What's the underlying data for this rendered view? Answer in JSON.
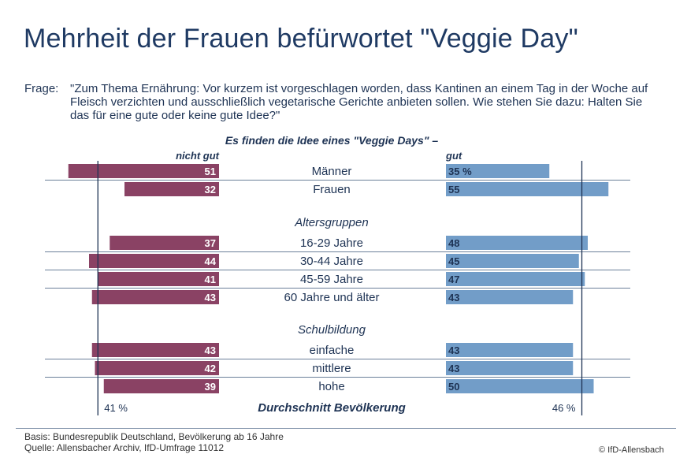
{
  "title": "Mehrheit der Frauen befürwortet \"Veggie Day\"",
  "question_label": "Frage:",
  "question": "\"Zum Thema Ernährung: Vor kurzem ist vorgeschlagen worden, dass Kantinen an einem Tag in der Woche auf Fleisch verzichten und ausschließlich vegetarische Gerichte anbieten sollen. Wie stehen Sie dazu: Halten Sie das für eine gute oder keine gute Idee?\"",
  "chart_data": {
    "type": "bar",
    "subtitle": "Es finden die Idee eines \"Veggie Days\" –",
    "left_label": "nicht gut",
    "right_label": "gut",
    "colors": {
      "nicht_gut": "#8a4264",
      "gut": "#729dc8"
    },
    "groups": [
      {
        "heading": "",
        "rows": [
          {
            "category": "Männer",
            "nicht_gut": 51,
            "gut": 35,
            "gut_label": "35 %"
          },
          {
            "category": "Frauen",
            "nicht_gut": 32,
            "gut": 55,
            "gut_label": "55"
          }
        ]
      },
      {
        "heading": "Altersgruppen",
        "rows": [
          {
            "category": "16-29 Jahre",
            "nicht_gut": 37,
            "gut": 48,
            "gut_label": "48"
          },
          {
            "category": "30-44 Jahre",
            "nicht_gut": 44,
            "gut": 45,
            "gut_label": "45"
          },
          {
            "category": "45-59 Jahre",
            "nicht_gut": 41,
            "gut": 47,
            "gut_label": "47"
          },
          {
            "category": "60 Jahre und älter",
            "nicht_gut": 43,
            "gut": 43,
            "gut_label": "43"
          }
        ]
      },
      {
        "heading": "Schulbildung",
        "rows": [
          {
            "category": "einfache",
            "nicht_gut": 43,
            "gut": 43,
            "gut_label": "43"
          },
          {
            "category": "mittlere",
            "nicht_gut": 42,
            "gut": 43,
            "gut_label": "43"
          },
          {
            "category": "hohe",
            "nicht_gut": 39,
            "gut": 50,
            "gut_label": "50"
          }
        ]
      }
    ],
    "average": {
      "label": "Durchschnitt Bevölkerung",
      "nicht_gut": 41,
      "gut": 46,
      "nicht_gut_label": "41 %",
      "gut_label": "46 %"
    }
  },
  "footer": {
    "basis": "Basis: Bundesrepublik Deutschland, Bevölkerung ab 16 Jahre",
    "source": "Quelle: Allensbacher Archiv, IfD-Umfrage 11012",
    "copyright": "© IfD-Allensbach"
  }
}
